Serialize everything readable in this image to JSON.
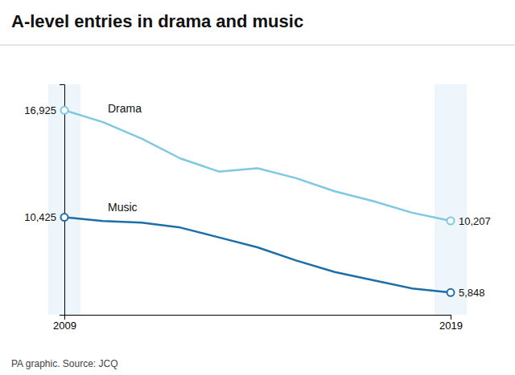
{
  "chart_data": {
    "type": "line",
    "title": "A-level entries in drama and music",
    "footer": "PA graphic. Source: JCQ",
    "x": [
      2009,
      2010,
      2011,
      2012,
      2013,
      2014,
      2015,
      2016,
      2017,
      2018,
      2019
    ],
    "series": [
      {
        "name": "Drama",
        "color": "#7EC8E3",
        "values": [
          16925,
          16200,
          15200,
          14000,
          13200,
          13400,
          12800,
          12000,
          11400,
          10700,
          10207
        ],
        "value_labels": [
          "16,925",
          null,
          null,
          null,
          null,
          null,
          null,
          null,
          null,
          null,
          "10,207"
        ]
      },
      {
        "name": "Music",
        "color": "#1B6EA8",
        "values": [
          10425,
          10200,
          10100,
          9800,
          9200,
          8600,
          7800,
          7100,
          6600,
          6100,
          5848
        ],
        "value_labels": [
          "10,425",
          null,
          null,
          null,
          null,
          null,
          null,
          null,
          null,
          null,
          "5,848"
        ]
      }
    ],
    "xlim": [
      2009,
      2019
    ],
    "xticks": [
      2009,
      2019
    ],
    "ylim": [
      4500,
      18500
    ],
    "yticks": [],
    "tick_labels": "x",
    "data_labels": true,
    "grid": false
  }
}
